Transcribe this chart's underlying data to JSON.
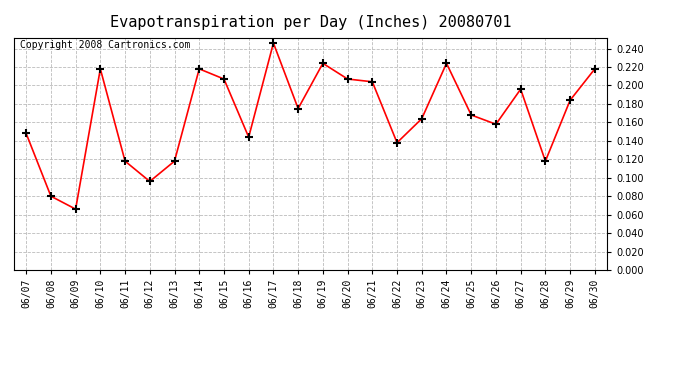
{
  "title": "Evapotranspiration per Day (Inches) 20080701",
  "copyright": "Copyright 2008 Cartronics.com",
  "x_labels": [
    "06/07",
    "06/08",
    "06/09",
    "06/10",
    "06/11",
    "06/12",
    "06/13",
    "06/14",
    "06/15",
    "06/16",
    "06/17",
    "06/18",
    "06/19",
    "06/20",
    "06/21",
    "06/22",
    "06/23",
    "06/24",
    "06/25",
    "06/26",
    "06/27",
    "06/28",
    "06/29",
    "06/30"
  ],
  "y_values": [
    0.148,
    0.08,
    0.066,
    0.218,
    0.118,
    0.096,
    0.118,
    0.218,
    0.207,
    0.144,
    0.246,
    0.175,
    0.224,
    0.207,
    0.204,
    0.138,
    0.164,
    0.224,
    0.168,
    0.158,
    0.196,
    0.118,
    0.184,
    0.218
  ],
  "line_color": "red",
  "marker": "+",
  "marker_color": "black",
  "marker_size": 6,
  "ylim": [
    0.0,
    0.252
  ],
  "yticks": [
    0.0,
    0.02,
    0.04,
    0.06,
    0.08,
    0.1,
    0.12,
    0.14,
    0.16,
    0.18,
    0.2,
    0.22,
    0.24
  ],
  "grid_color": "#bbbbbb",
  "grid_style": "--",
  "bg_color": "white",
  "plot_bg_color": "white",
  "title_fontsize": 11,
  "copyright_fontsize": 7,
  "tick_fontsize": 7
}
